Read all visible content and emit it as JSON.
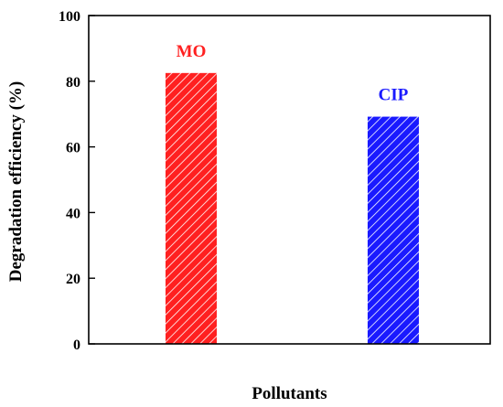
{
  "chart_data": {
    "type": "bar",
    "categories": [
      "MO",
      "CIP"
    ],
    "values": [
      82.5,
      69.2
    ],
    "colors": [
      "#ff2020",
      "#1a1aff"
    ],
    "bar_pattern": "diagonal-hatch-white",
    "xlabel": "Pollutants",
    "ylabel": "Degradation efficiency (%)",
    "ylim": [
      0,
      100
    ],
    "yticks": [
      0,
      20,
      40,
      60,
      80,
      100
    ],
    "bar_labels": [
      "MO",
      "CIP"
    ],
    "grid": false,
    "legend": "none"
  }
}
